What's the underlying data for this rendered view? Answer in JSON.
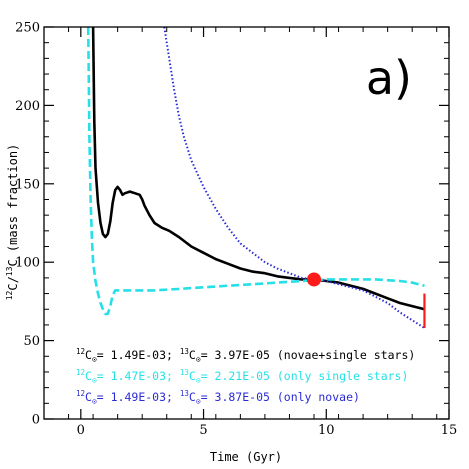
{
  "chart_data": {
    "type": "line",
    "xlabel": "Time (Gyr)",
    "ylabel": "12C/13C (mass fraction)",
    "ylabel_parts": {
      "iso1": "12",
      "el1": "C/",
      "iso2": "13",
      "el2": "C (mass fraction)"
    },
    "xlim": [
      -1.5,
      15
    ],
    "ylim": [
      0,
      250
    ],
    "xticks": [
      0,
      5,
      10,
      15
    ],
    "yticks": [
      0,
      50,
      100,
      150,
      200,
      250
    ],
    "panel_label": "a)",
    "grid": false,
    "series": [
      {
        "color": "#000000",
        "style": "solid",
        "points": [
          [
            0.5,
            250
          ],
          [
            0.55,
            190
          ],
          [
            0.6,
            160
          ],
          [
            0.7,
            138
          ],
          [
            0.8,
            125
          ],
          [
            0.9,
            118
          ],
          [
            1.0,
            116
          ],
          [
            1.1,
            118
          ],
          [
            1.2,
            126
          ],
          [
            1.3,
            138
          ],
          [
            1.4,
            146
          ],
          [
            1.5,
            148
          ],
          [
            1.6,
            146
          ],
          [
            1.7,
            143
          ],
          [
            1.8,
            144
          ],
          [
            2.0,
            145
          ],
          [
            2.2,
            144
          ],
          [
            2.4,
            143
          ],
          [
            2.5,
            140
          ],
          [
            2.6,
            136
          ],
          [
            2.8,
            130
          ],
          [
            3.0,
            125
          ],
          [
            3.3,
            122
          ],
          [
            3.6,
            120
          ],
          [
            4.0,
            116
          ],
          [
            4.5,
            110
          ],
          [
            5.0,
            106
          ],
          [
            5.5,
            102
          ],
          [
            6.0,
            99
          ],
          [
            6.5,
            96
          ],
          [
            7.0,
            94
          ],
          [
            7.5,
            93
          ],
          [
            8.0,
            91
          ],
          [
            8.5,
            90
          ],
          [
            9.0,
            89
          ],
          [
            9.5,
            89
          ],
          [
            10.0,
            88
          ],
          [
            10.5,
            87
          ],
          [
            11.0,
            85
          ],
          [
            11.5,
            83
          ],
          [
            12.0,
            80
          ],
          [
            12.5,
            77
          ],
          [
            13.0,
            74
          ],
          [
            13.5,
            72
          ],
          [
            14.0,
            70
          ]
        ]
      },
      {
        "color": "#26e0e8",
        "style": "dashed",
        "points": [
          [
            0.3,
            250
          ],
          [
            0.35,
            180
          ],
          [
            0.4,
            140
          ],
          [
            0.45,
            115
          ],
          [
            0.5,
            100
          ],
          [
            0.6,
            88
          ],
          [
            0.7,
            80
          ],
          [
            0.8,
            74
          ],
          [
            0.9,
            70
          ],
          [
            1.0,
            67
          ],
          [
            1.1,
            67
          ],
          [
            1.2,
            72
          ],
          [
            1.3,
            79
          ],
          [
            1.4,
            82
          ],
          [
            1.5,
            82
          ],
          [
            2.0,
            82
          ],
          [
            3.0,
            82
          ],
          [
            4.0,
            83
          ],
          [
            5.0,
            84
          ],
          [
            6.0,
            85
          ],
          [
            7.0,
            86
          ],
          [
            8.0,
            87
          ],
          [
            9.0,
            88
          ],
          [
            10.0,
            89
          ],
          [
            11.0,
            89
          ],
          [
            12.0,
            89
          ],
          [
            13.0,
            88
          ],
          [
            13.5,
            87
          ],
          [
            14.0,
            85
          ]
        ]
      },
      {
        "color": "#2b2bd6",
        "style": "dotted",
        "points": [
          [
            3.4,
            250
          ],
          [
            3.6,
            230
          ],
          [
            3.8,
            210
          ],
          [
            4.0,
            193
          ],
          [
            4.2,
            180
          ],
          [
            4.5,
            165
          ],
          [
            5.0,
            148
          ],
          [
            5.5,
            134
          ],
          [
            6.0,
            122
          ],
          [
            6.5,
            112
          ],
          [
            7.0,
            106
          ],
          [
            7.5,
            100
          ],
          [
            8.0,
            96
          ],
          [
            8.5,
            93
          ],
          [
            9.0,
            90
          ],
          [
            9.5,
            89
          ],
          [
            10.0,
            88
          ],
          [
            10.5,
            86
          ],
          [
            11.0,
            84
          ],
          [
            11.5,
            82
          ],
          [
            12.0,
            78
          ],
          [
            12.5,
            74
          ],
          [
            13.0,
            68
          ],
          [
            13.5,
            63
          ],
          [
            14.0,
            58
          ]
        ]
      }
    ],
    "marker": {
      "x": 9.5,
      "y": 89,
      "color": "#ff1a1a"
    },
    "range_bar": {
      "x": 14.0,
      "y": [
        58,
        80
      ],
      "color": "#ff1a1a"
    },
    "legend": [
      {
        "color": "#000000",
        "iso_a": "12",
        "el_a": "C",
        "val_a": "= 1.49E-03; ",
        "iso_b": "13",
        "el_b": "C",
        "val_b": "= 3.97E-05 (novae+single stars)"
      },
      {
        "color": "#26e0e8",
        "iso_a": "12",
        "el_a": "C",
        "val_a": "= 1.47E-03; ",
        "iso_b": "13",
        "el_b": "C",
        "val_b": "= 2.21E-05 (only single stars)"
      },
      {
        "color": "#2b2bd6",
        "iso_a": "12",
        "el_a": "C",
        "val_a": "= 1.49E-03; ",
        "iso_b": "13",
        "el_b": "C",
        "val_b": "= 3.87E-05 (only novae)"
      }
    ],
    "solar_symbol": "⊙"
  }
}
